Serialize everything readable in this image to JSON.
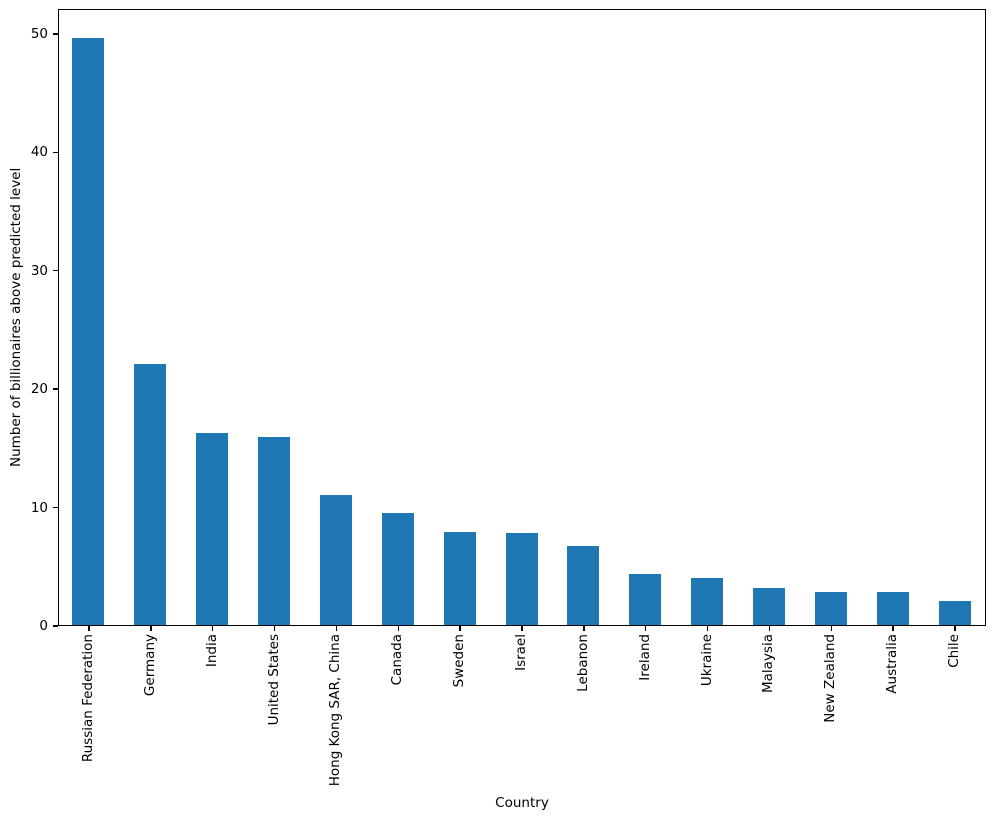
{
  "chart_data": {
    "type": "bar",
    "title": "",
    "xlabel": "Country",
    "ylabel": "Number of billionaires above predicted level",
    "categories": [
      "Russian Federation",
      "Germany",
      "India",
      "United States",
      "Hong Kong SAR, China",
      "Canada",
      "Sweden",
      "Israel",
      "Lebanon",
      "Ireland",
      "Ukraine",
      "Malaysia",
      "New Zealand",
      "Australia",
      "Chile"
    ],
    "values": [
      49.6,
      22.0,
      16.2,
      15.9,
      11.0,
      9.5,
      7.85,
      7.75,
      6.65,
      4.3,
      4.0,
      3.15,
      2.75,
      2.75,
      2.0
    ],
    "yticks": [
      0,
      10,
      20,
      30,
      40,
      50
    ],
    "ylim": [
      0,
      52.1
    ],
    "grid": false,
    "bar_color": "#1f77b4",
    "axis_color": "#000000"
  }
}
